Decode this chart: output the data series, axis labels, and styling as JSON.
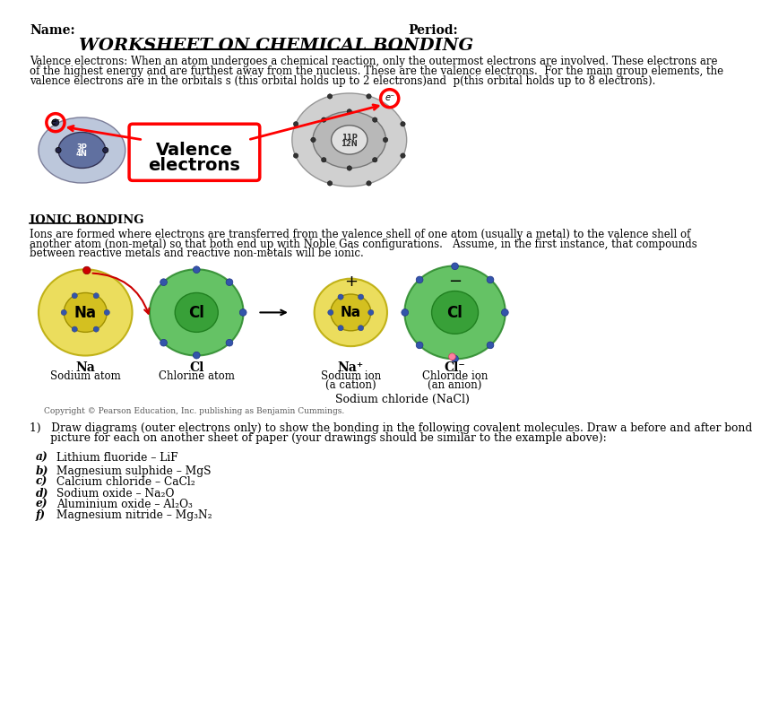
{
  "title": "WORKSHEET ON CHEMICAL BONDING",
  "name_label": "Name:",
  "period_label": "Period:",
  "bg_color": "#ffffff",
  "text_color": "#000000",
  "intro_lines": [
    "Valence electrons: When an atom undergoes a chemical reaction, only the outermost electrons are involved. These electrons are",
    "of the highest energy and are furthest away from the nucleus. These are the valence electrons.  For the main group elements, the",
    "valence electrons are in the orbitals s (this orbital holds up to 2 electrons)and  p(this orbital holds up to 8 electrons)."
  ],
  "ionic_bonding_title": "IONIC BONDING",
  "ionic_text_lines": [
    "Ions are formed where electrons are transferred from the valence shell of one atom (usually a metal) to the valence shell of",
    "another atom (non-metal) so that both end up with Noble Gas configurations.   Assume, in the first instance, that compounds",
    "between reactive metals and reactive non-metals will be ionic."
  ],
  "q1_lines": [
    "1)   Draw diagrams (outer electrons only) to show the bonding in the following covalent molecules. Draw a before and after bond",
    "      picture for each on another sheet of paper (your drawings should be similar to the example above):"
  ],
  "items": [
    {
      "label": "a)",
      "text": "Lithium fluoride – LiF"
    },
    {
      "label": "b)",
      "text": "Magnesium sulphide – MgS"
    },
    {
      "label": "c)",
      "text": "Calcium chloride – CaCl₂"
    },
    {
      "label": "d)",
      "text": "Sodium oxide – Na₂O"
    },
    {
      "label": "e)",
      "text": "Aluminium oxide – Al₂O₃"
    },
    {
      "label": "f)",
      "text": "Magnesium nitride – Mg₃N₂"
    }
  ],
  "copyright": "Copyright © Pearson Education, Inc. publishing as Benjamin Cummings."
}
